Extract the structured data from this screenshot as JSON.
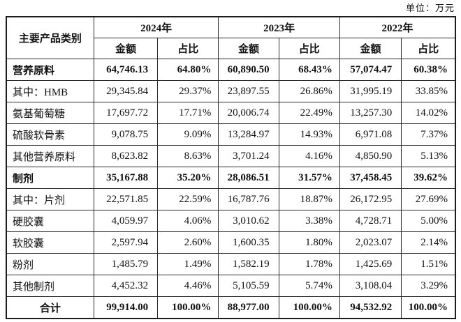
{
  "unit_label": "单位：万元",
  "table": {
    "category_header": "主要产品类别",
    "year_headers": [
      "2024年",
      "2023年",
      "2022年"
    ],
    "sub_headers": {
      "amount": "金额",
      "ratio": "占比"
    },
    "rows": [
      {
        "category": "营养原料",
        "values": [
          "64,746.13",
          "64.80%",
          "60,890.50",
          "68.43%",
          "57,074.47",
          "60.38%"
        ]
      },
      {
        "category": "其中：HMB",
        "values": [
          "29,345.84",
          "29.37%",
          "23,897.55",
          "26.86%",
          "31,995.19",
          "33.85%"
        ]
      },
      {
        "category": "氨基葡萄糖",
        "values": [
          "17,697.72",
          "17.71%",
          "20,006.74",
          "22.49%",
          "13,257.30",
          "14.02%"
        ]
      },
      {
        "category": "硫酸软骨素",
        "values": [
          "9,078.75",
          "9.09%",
          "13,284.97",
          "14.93%",
          "6,971.08",
          "7.37%"
        ]
      },
      {
        "category": "其他营养原料",
        "values": [
          "8,623.82",
          "8.63%",
          "3,701.24",
          "4.16%",
          "4,850.90",
          "5.13%"
        ]
      },
      {
        "category": "制剂",
        "values": [
          "35,167.88",
          "35.20%",
          "28,086.51",
          "31.57%",
          "37,458.45",
          "39.62%"
        ]
      },
      {
        "category": "其中：片剂",
        "values": [
          "22,571.85",
          "22.59%",
          "16,787.76",
          "18.87%",
          "26,172.95",
          "27.69%"
        ]
      },
      {
        "category": "硬胶囊",
        "values": [
          "4,059.97",
          "4.06%",
          "3,010.62",
          "3.38%",
          "4,728.71",
          "5.00%"
        ]
      },
      {
        "category": "软胶囊",
        "values": [
          "2,597.94",
          "2.60%",
          "1,600.35",
          "1.80%",
          "2,023.07",
          "2.14%"
        ]
      },
      {
        "category": "粉剂",
        "values": [
          "1,485.79",
          "1.49%",
          "1,582.19",
          "1.78%",
          "1,425.69",
          "1.51%"
        ]
      },
      {
        "category": "其他制剂",
        "values": [
          "4,452.32",
          "4.46%",
          "5,105.59",
          "5.74%",
          "3,108.04",
          "3.29%"
        ]
      },
      {
        "category": "合计",
        "values": [
          "99,914.00",
          "100.00%",
          "88,977.00",
          "100.00%",
          "94,532.92",
          "100.00%"
        ]
      }
    ]
  }
}
